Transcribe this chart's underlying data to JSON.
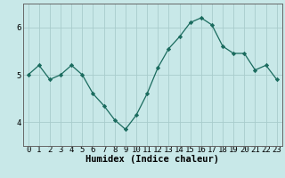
{
  "x": [
    0,
    1,
    2,
    3,
    4,
    5,
    6,
    7,
    8,
    9,
    10,
    11,
    12,
    13,
    14,
    15,
    16,
    17,
    18,
    19,
    20,
    21,
    22,
    23
  ],
  "y": [
    5.0,
    5.2,
    4.9,
    5.0,
    5.2,
    5.0,
    4.6,
    4.35,
    4.05,
    3.85,
    4.15,
    4.6,
    5.15,
    5.55,
    5.8,
    6.1,
    6.2,
    6.05,
    5.6,
    5.45,
    5.45,
    5.1,
    5.2,
    4.9
  ],
  "line_color": "#1a6b5e",
  "bg_color": "#c8e8e8",
  "grid_color": "#a8cccc",
  "xlabel": "Humidex (Indice chaleur)",
  "ylim": [
    3.5,
    6.5
  ],
  "xlim": [
    -0.5,
    23.5
  ],
  "yticks": [
    4,
    5,
    6
  ],
  "xticks": [
    0,
    1,
    2,
    3,
    4,
    5,
    6,
    7,
    8,
    9,
    10,
    11,
    12,
    13,
    14,
    15,
    16,
    17,
    18,
    19,
    20,
    21,
    22,
    23
  ],
  "xlabel_fontsize": 7.5,
  "tick_fontsize": 6.5,
  "spine_color": "#666666"
}
